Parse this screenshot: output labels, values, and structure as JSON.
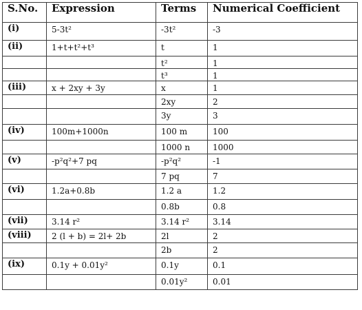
{
  "headers": {
    "sno": "S.No.",
    "expression": "Expression",
    "terms": "Terms",
    "coefficient": "Numerical Coefficient"
  },
  "rows": [
    {
      "sno": "(i)",
      "expression": "5-3t²",
      "term": "-3t²",
      "coefficient": "-3"
    },
    {
      "sno": "(ii)",
      "expression": "1+t+t²+t³",
      "term": "t",
      "coefficient": "1"
    },
    {
      "sno": "",
      "expression": "",
      "term": "t²",
      "coefficient": "1"
    },
    {
      "sno": "",
      "expression": "",
      "term": "t³",
      "coefficient": "1"
    },
    {
      "sno": "(iii)",
      "expression": "x + 2xy + 3y",
      "term": "x",
      "coefficient": "1"
    },
    {
      "sno": "",
      "expression": "",
      "term": "2xy",
      "coefficient": "2"
    },
    {
      "sno": "",
      "expression": "",
      "term": "3y",
      "coefficient": "3"
    },
    {
      "sno": "(iv)",
      "expression": "100m+1000n",
      "term": "100 m",
      "coefficient": "100"
    },
    {
      "sno": "",
      "expression": "",
      "term": "1000 n",
      "coefficient": "1000"
    },
    {
      "sno": "(v)",
      "expression": "-p²q²+7 pq",
      "term": "-p²q²",
      "coefficient": "-1"
    },
    {
      "sno": "",
      "expression": "",
      "term": "7 pq",
      "coefficient": "7"
    },
    {
      "sno": "(vi)",
      "expression": "1.2a+0.8b",
      "term": "1.2 a",
      "coefficient": "1.2"
    },
    {
      "sno": "",
      "expression": "",
      "term": "0.8b",
      "coefficient": "0.8"
    },
    {
      "sno": "(vii)",
      "expression": "3.14 r²",
      "term": "3.14 r²",
      "coefficient": "3.14"
    },
    {
      "sno": "(viii)",
      "expression": "2 (l + b) = 2l+ 2b",
      "term": "2l",
      "coefficient": "2"
    },
    {
      "sno": "",
      "expression": "",
      "term": "2b",
      "coefficient": "2"
    },
    {
      "sno": "(ix)",
      "expression": "0.1y + 0.01y²",
      "term": "0.1y",
      "coefficient": "0.1"
    },
    {
      "sno": "",
      "expression": "",
      "term": "0.01y²",
      "coefficient": "0.01"
    }
  ]
}
